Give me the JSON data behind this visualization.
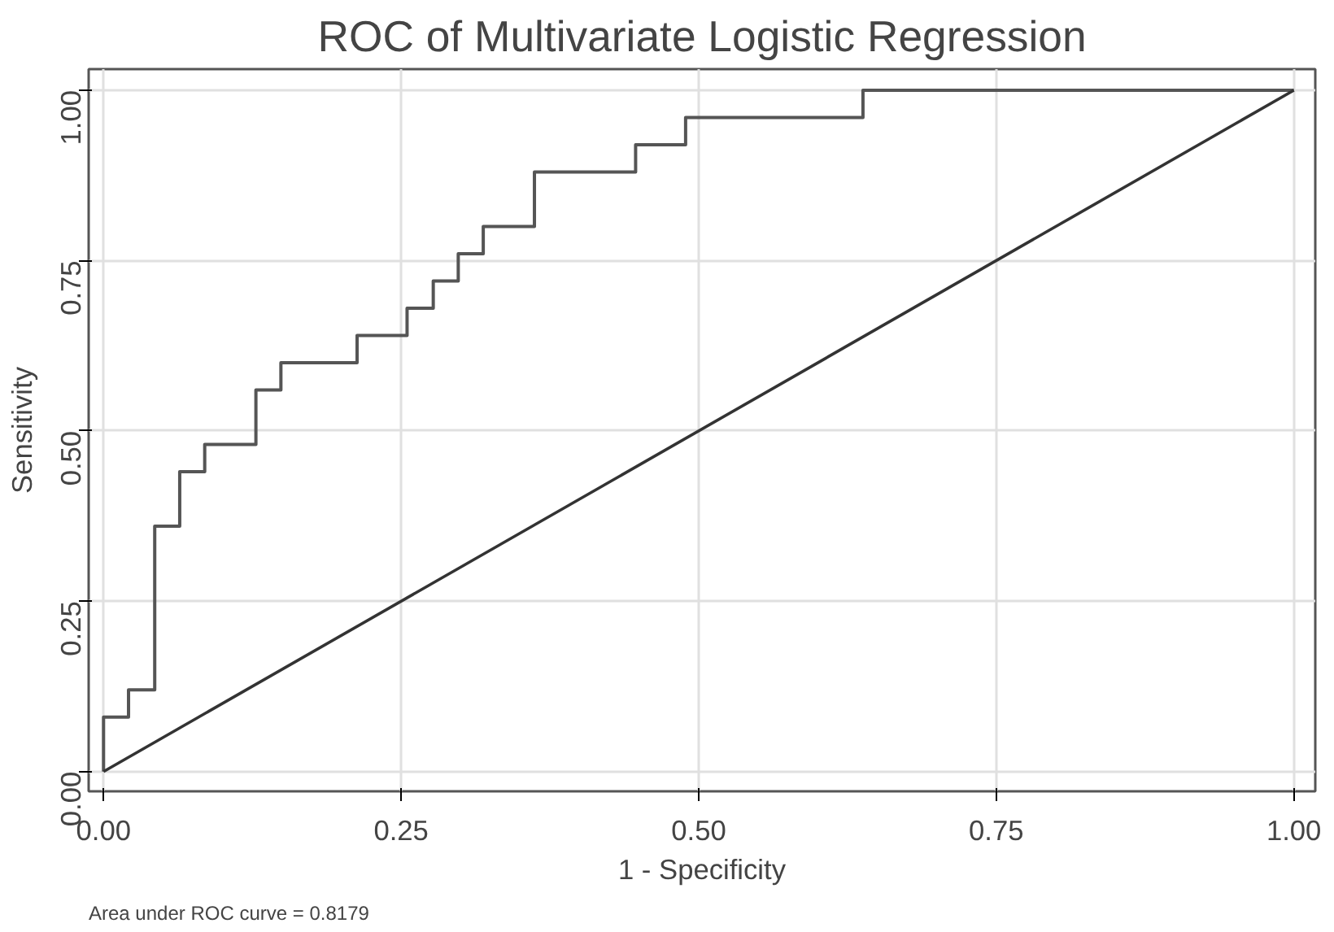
{
  "chart_data": {
    "type": "line",
    "title": "ROC of Multivariate Logistic Regression",
    "xlabel": "1 - Specificity",
    "ylabel": "Sensitivity",
    "series": [
      {
        "type": "step",
        "color": "#555555",
        "x": [
          0,
          0,
          0.021,
          0.043,
          0.064,
          0.085,
          0.128,
          0.149,
          0.213,
          0.255,
          0.277,
          0.298,
          0.319,
          0.362,
          0.447,
          0.489,
          0.638,
          1
        ],
        "values": [
          0,
          0.08,
          0.12,
          0.36,
          0.44,
          0.48,
          0.56,
          0.6,
          0.64,
          0.68,
          0.72,
          0.76,
          0.8,
          0.88,
          0.92,
          0.96,
          1.0,
          1.0
        ]
      },
      {
        "color": "#333333",
        "x": [
          0,
          1
        ],
        "values": [
          0,
          1
        ]
      }
    ],
    "xlim": [
      -0.0125,
      1.018
    ],
    "ylim": [
      -0.029,
      1.031
    ],
    "xticks": [
      {
        "value": 0,
        "label": "0.00"
      },
      {
        "value": 0.25,
        "label": "0.25"
      },
      {
        "value": 0.5,
        "label": "0.50"
      },
      {
        "value": 0.75,
        "label": "0.75"
      },
      {
        "value": 1,
        "label": "1.00"
      }
    ],
    "yticks": [
      {
        "value": 0,
        "label": "0.00"
      },
      {
        "value": 0.25,
        "label": "0.25"
      },
      {
        "value": 0.5,
        "label": "0.50"
      },
      {
        "value": 0.75,
        "label": "0.75"
      },
      {
        "value": 1,
        "label": "1.00"
      }
    ],
    "grid": true,
    "marker": "none",
    "line_style": "solid",
    "annotations": [
      "Area under ROC curve = 0.8179"
    ]
  }
}
